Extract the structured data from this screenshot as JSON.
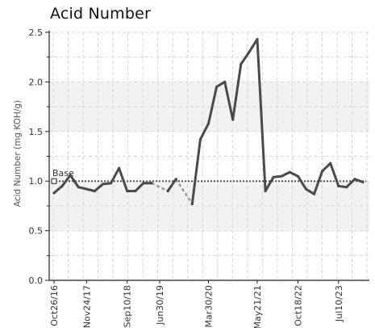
{
  "chart_data": {
    "type": "line",
    "title": "Acid Number",
    "xlabel": "",
    "ylabel": "Acid Number (mg KOH/g)",
    "ylim": [
      0,
      2.5
    ],
    "yticks": [
      "0.0",
      "0.5",
      "1.0",
      "1.5",
      "2.0",
      "2.5"
    ],
    "x_tick_labels": [
      "Oct26/16",
      "Nov24/17",
      "Sep10/18",
      "Jun30/19",
      "Mar30/20",
      "May21/21",
      "Oct18/22",
      "Jul10/23"
    ],
    "grid": true,
    "baseline": {
      "label": "Base",
      "value": 1.0
    },
    "series": [
      {
        "values": [
          {
            "x": "Oct26/16",
            "y": 0.88
          },
          {
            "x": "",
            "y": 0.95
          },
          {
            "x": "",
            "y": 1.06
          },
          {
            "x": "",
            "y": 0.94
          },
          {
            "x": "Nov24/17",
            "y": 0.92
          },
          {
            "x": "",
            "y": 0.9
          },
          {
            "x": "",
            "y": 0.97
          },
          {
            "x": "",
            "y": 0.98
          },
          {
            "x": "",
            "y": 1.13
          },
          {
            "x": "Sep10/18",
            "y": 0.9
          },
          {
            "x": "",
            "y": 0.9
          },
          {
            "x": "",
            "y": 0.98
          },
          {
            "x": "",
            "y": 0.98
          },
          {
            "x": "Jun30/19",
            "y": null
          },
          {
            "x": "",
            "y": 0.9
          },
          {
            "x": "",
            "y": 1.02
          },
          {
            "x": "",
            "y": null
          },
          {
            "x": "",
            "y": 0.77
          },
          {
            "x": "",
            "y": 1.42
          },
          {
            "x": "Mar30/20",
            "y": 1.58
          },
          {
            "x": "",
            "y": 1.95
          },
          {
            "x": "",
            "y": 2.0
          },
          {
            "x": "",
            "y": 1.62
          },
          {
            "x": "",
            "y": 2.18
          },
          {
            "x": "",
            "y": 2.3
          },
          {
            "x": "May21/21",
            "y": 2.43
          },
          {
            "x": "",
            "y": 0.9
          },
          {
            "x": "",
            "y": 1.04
          },
          {
            "x": "",
            "y": 1.05
          },
          {
            "x": "",
            "y": 1.09
          },
          {
            "x": "Oct18/22",
            "y": 1.05
          },
          {
            "x": "",
            "y": 0.92
          },
          {
            "x": "",
            "y": 0.87
          },
          {
            "x": "",
            "y": 1.1
          },
          {
            "x": "",
            "y": 1.18
          },
          {
            "x": "Jul10/23",
            "y": 0.95
          },
          {
            "x": "",
            "y": 0.94
          },
          {
            "x": "",
            "y": 1.02
          },
          {
            "x": "",
            "y": 0.99
          }
        ],
        "color": "#4a4a4a"
      }
    ],
    "interpolated_segments": [
      {
        "from_y": 0.98,
        "to_y": 0.9
      },
      {
        "from_y": 1.02,
        "to_y": 0.77
      }
    ],
    "colors": {
      "line": "#4a4a4a",
      "interpolated": "#9a9a9a",
      "baseline": "#555555",
      "band": "#f2f2f2",
      "grid": "#d6d6d6",
      "axis": "#222222"
    }
  }
}
